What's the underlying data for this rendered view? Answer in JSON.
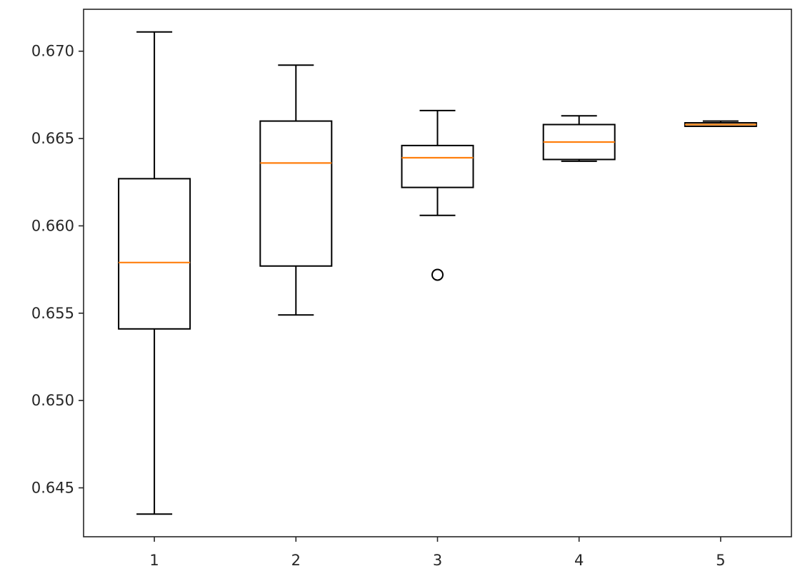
{
  "chart_data": {
    "type": "boxplot",
    "title": "",
    "xlabel": "",
    "ylabel": "",
    "ylim": [
      0.6422,
      0.6724
    ],
    "x_categories": [
      "1",
      "2",
      "3",
      "4",
      "5"
    ],
    "yticks": [
      0.645,
      0.65,
      0.655,
      0.66,
      0.665,
      0.67
    ],
    "ytick_labels": [
      "0.645",
      "0.650",
      "0.655",
      "0.660",
      "0.665",
      "0.670"
    ],
    "grid": false,
    "colors": {
      "box": "#000000",
      "median": "#ff7f0e",
      "axes": "#262626"
    },
    "boxes": [
      {
        "label": "1",
        "whisker_low": 0.6435,
        "q1": 0.6541,
        "median": 0.6579,
        "q3": 0.6627,
        "whisker_high": 0.6711,
        "outliers": []
      },
      {
        "label": "2",
        "whisker_low": 0.6549,
        "q1": 0.6577,
        "median": 0.6636,
        "q3": 0.666,
        "whisker_high": 0.6692,
        "outliers": []
      },
      {
        "label": "3",
        "whisker_low": 0.6606,
        "q1": 0.6622,
        "median": 0.6639,
        "q3": 0.6646,
        "whisker_high": 0.6666,
        "outliers": [
          0.6572
        ]
      },
      {
        "label": "4",
        "whisker_low": 0.6637,
        "q1": 0.6638,
        "median": 0.6648,
        "q3": 0.6658,
        "whisker_high": 0.6663,
        "outliers": []
      },
      {
        "label": "5",
        "whisker_low": 0.6657,
        "q1": 0.6657,
        "median": 0.6658,
        "q3": 0.6659,
        "whisker_high": 0.666,
        "outliers": []
      }
    ]
  }
}
